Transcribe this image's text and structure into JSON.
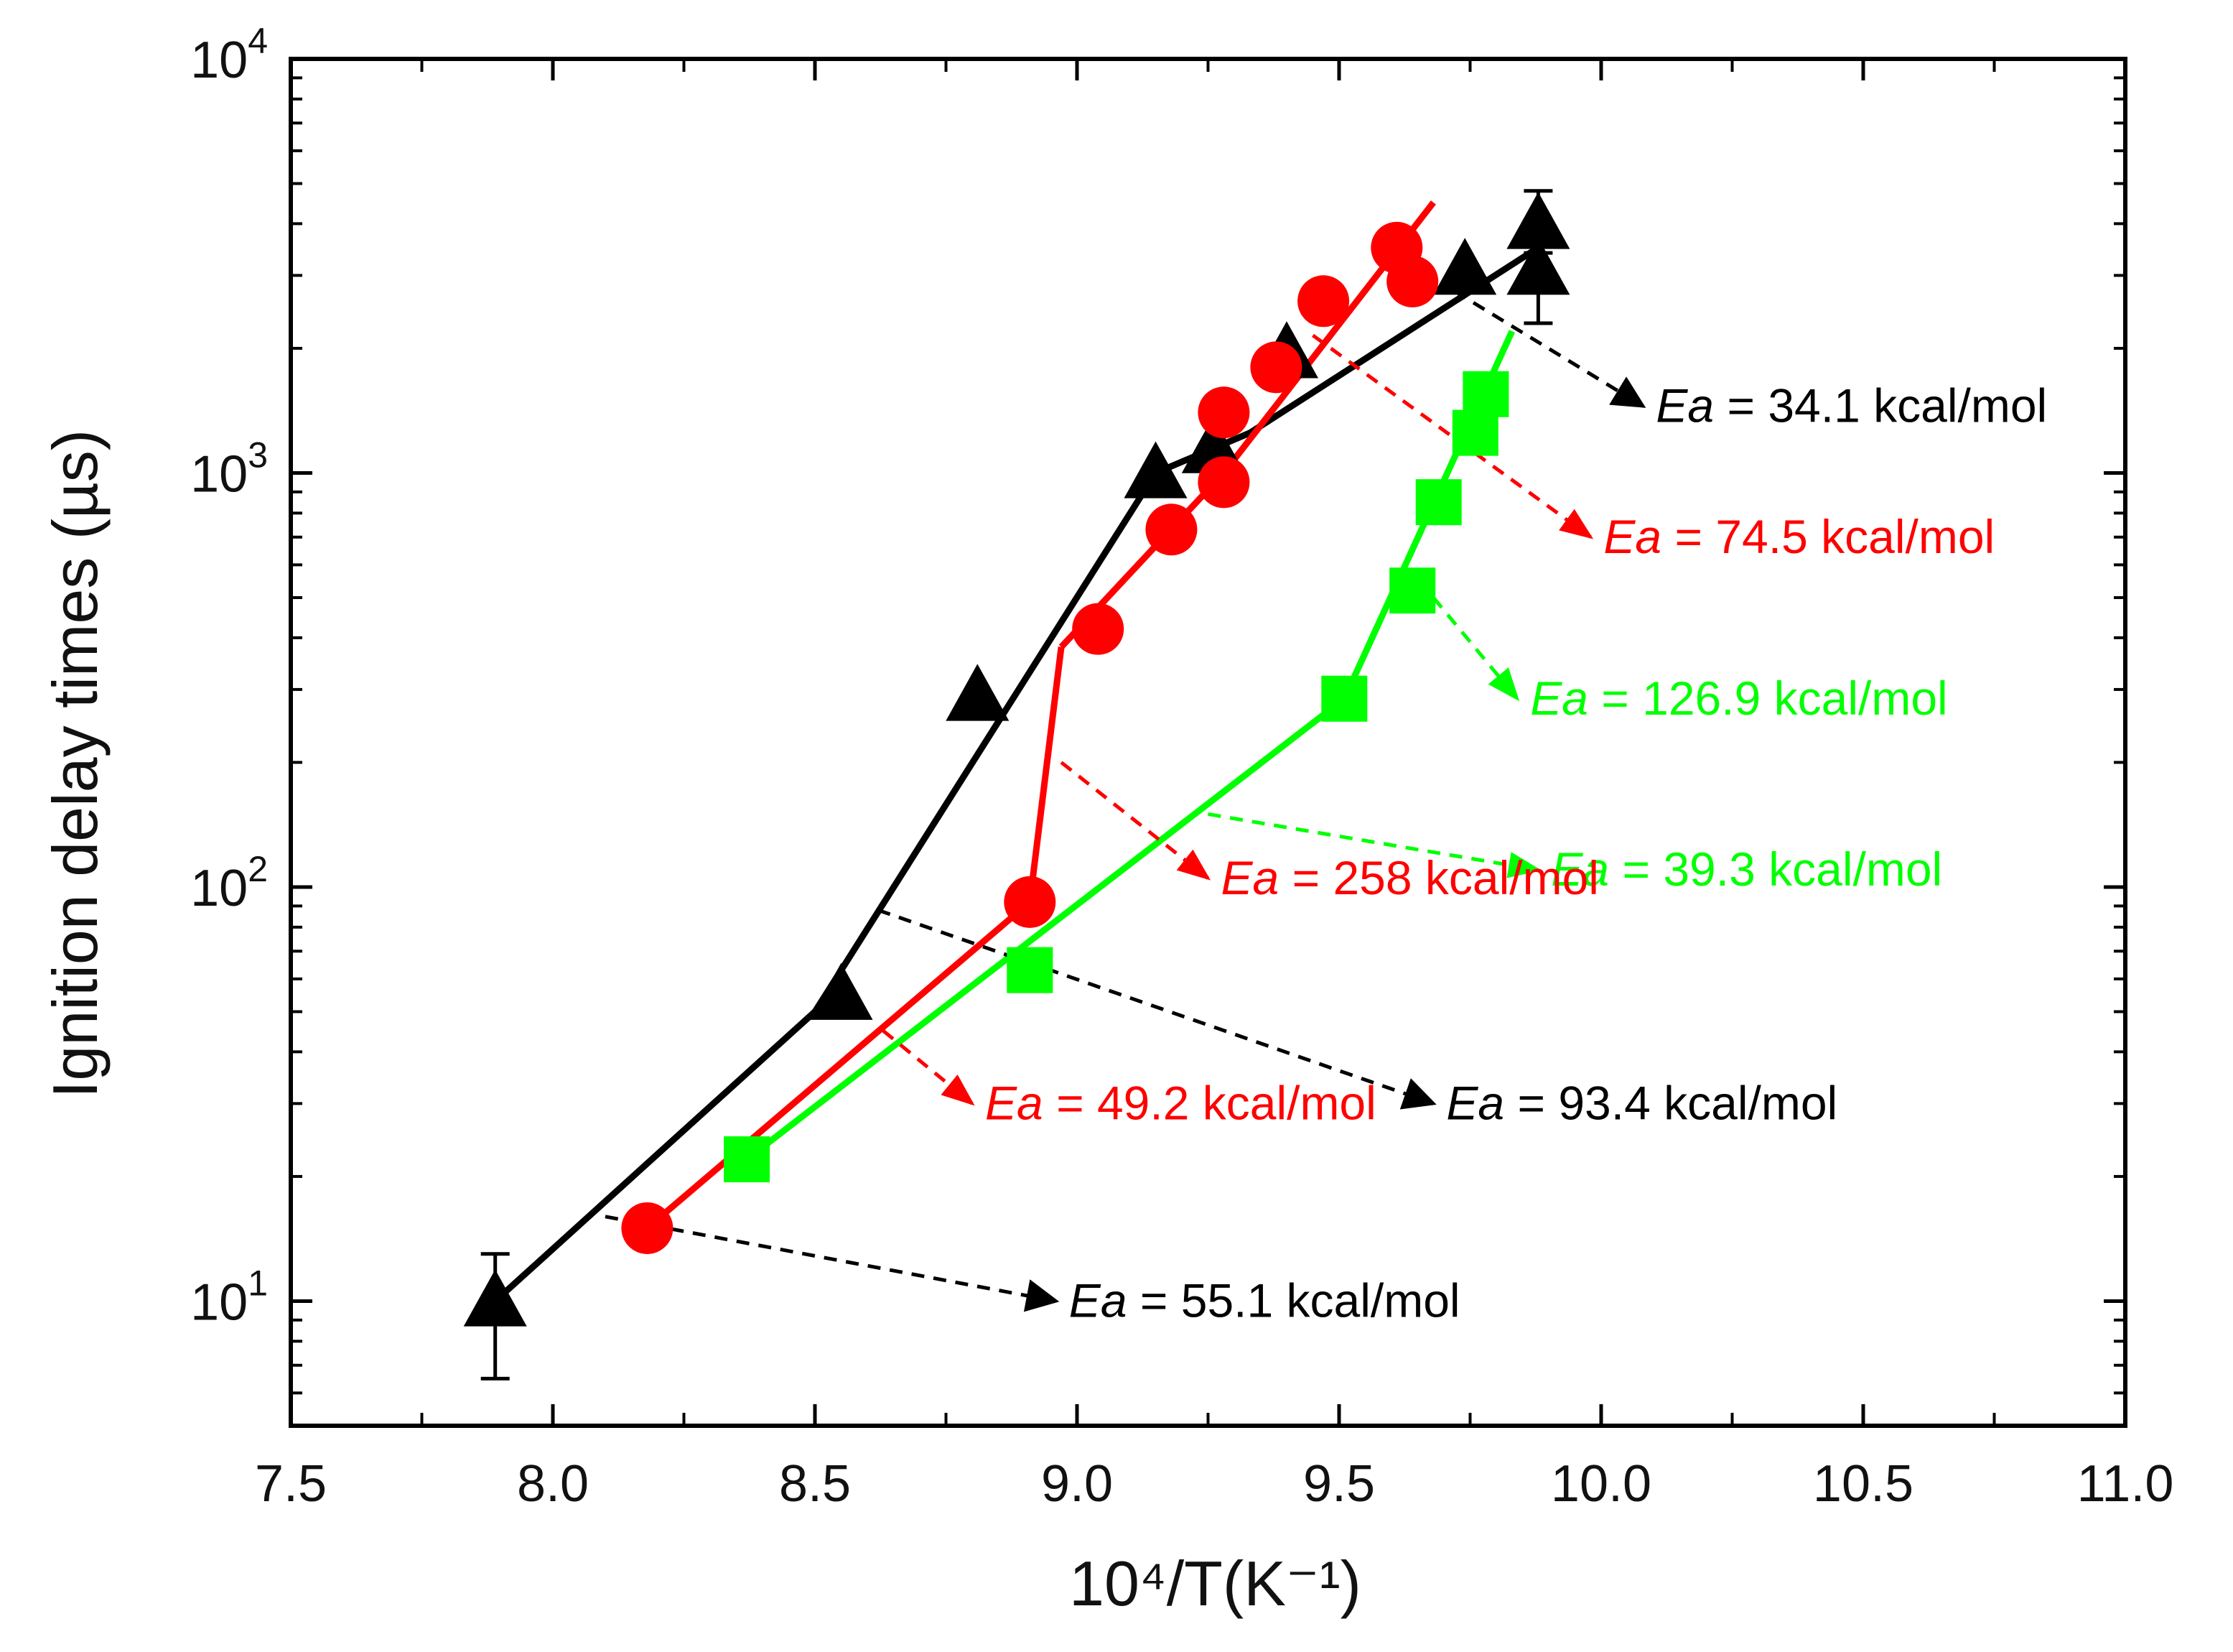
{
  "chart_data": {
    "type": "scatter",
    "title": "",
    "xlabel": "10⁴/T(K⁻¹)",
    "ylabel": "Ignition delay times (µs)",
    "xlim": [
      7.5,
      11.0
    ],
    "ylim": [
      5,
      10000
    ],
    "yscale": "log",
    "grid": false,
    "x_ticks": [
      7.5,
      8.0,
      8.5,
      9.0,
      9.5,
      10.0,
      10.5,
      11.0
    ],
    "x_tick_labels": [
      "7.5",
      "8.0",
      "8.5",
      "9.0",
      "9.5",
      "10.0",
      "10.5",
      "11.0"
    ],
    "y_ticks": [
      {
        "value": 10,
        "base": "10",
        "exp": "1"
      },
      {
        "value": 100,
        "base": "10",
        "exp": "2"
      },
      {
        "value": 1000,
        "base": "10",
        "exp": "3"
      },
      {
        "value": 10000,
        "base": "10",
        "exp": "4"
      }
    ],
    "series": [
      {
        "name": "black",
        "color": "#000000",
        "marker": "triangle",
        "points": [
          {
            "x": 7.89,
            "y": 10,
            "err": [
              6.5,
              13
            ]
          },
          {
            "x": 8.55,
            "y": 55
          },
          {
            "x": 8.81,
            "y": 290
          },
          {
            "x": 9.15,
            "y": 1000
          },
          {
            "x": 9.26,
            "y": 1150
          },
          {
            "x": 9.4,
            "y": 1950
          },
          {
            "x": 9.74,
            "y": 3100
          },
          {
            "x": 9.88,
            "y": 4000,
            "err": [
              3400,
              4800
            ]
          },
          {
            "x": 9.88,
            "y": 3100,
            "err": [
              2300,
              3100
            ]
          }
        ],
        "fits": [
          {
            "x": [
              7.89,
              8.5
            ],
            "y": [
              10,
              50
            ]
          },
          {
            "x": [
              8.5,
              9.15
            ],
            "y": [
              50,
              1000
            ]
          },
          {
            "x": [
              9.15,
              9.33
            ],
            "y": [
              1000,
              1250
            ]
          },
          {
            "x": [
              9.33,
              9.88
            ],
            "y": [
              1250,
              3500
            ]
          }
        ]
      },
      {
        "name": "red",
        "color": "#ff0000",
        "marker": "circle",
        "points": [
          {
            "x": 8.18,
            "y": 15
          },
          {
            "x": 8.91,
            "y": 92
          },
          {
            "x": 9.04,
            "y": 420
          },
          {
            "x": 9.18,
            "y": 730
          },
          {
            "x": 9.28,
            "y": 950
          },
          {
            "x": 9.28,
            "y": 1400
          },
          {
            "x": 9.38,
            "y": 1800
          },
          {
            "x": 9.47,
            "y": 2600
          },
          {
            "x": 9.61,
            "y": 3500
          },
          {
            "x": 9.64,
            "y": 2900
          }
        ],
        "fits": [
          {
            "x": [
              8.18,
              8.91
            ],
            "y": [
              15,
              92
            ]
          },
          {
            "x": [
              8.91,
              8.97
            ],
            "y": [
              92,
              380
            ]
          },
          {
            "x": [
              8.97,
              9.28
            ],
            "y": [
              380,
              1000
            ]
          },
          {
            "x": [
              9.28,
              9.68
            ],
            "y": [
              1000,
              4500
            ]
          }
        ]
      },
      {
        "name": "green",
        "color": "#00ff00",
        "marker": "square",
        "points": [
          {
            "x": 8.37,
            "y": 22
          },
          {
            "x": 8.91,
            "y": 63
          },
          {
            "x": 9.51,
            "y": 285
          },
          {
            "x": 9.64,
            "y": 520
          },
          {
            "x": 9.69,
            "y": 850
          },
          {
            "x": 9.76,
            "y": 1250
          },
          {
            "x": 9.78,
            "y": 1550
          }
        ],
        "fits": [
          {
            "x": [
              8.37,
              9.51
            ],
            "y": [
              22,
              285
            ]
          },
          {
            "x": [
              9.51,
              9.83
            ],
            "y": [
              285,
              2200
            ]
          }
        ]
      }
    ],
    "annotations": [
      {
        "symbol": "Ea",
        "text": " = 34.1 kcal/mol",
        "color": "#000000",
        "from": [
          9.72,
          2750
        ],
        "to": [
          10.08,
          1450
        ]
      },
      {
        "symbol": "Ea",
        "text": " = 74.5 kcal/mol",
        "color": "#ff0000",
        "from": [
          9.45,
          2150
        ],
        "to": [
          9.98,
          700
        ]
      },
      {
        "symbol": "Ea",
        "text": " = 126.9 kcal/mol",
        "color": "#00ff00",
        "from": [
          9.68,
          500
        ],
        "to": [
          9.84,
          285
        ]
      },
      {
        "symbol": "Ea",
        "text": " = 39.3 kcal/mol",
        "color": "#00ff00",
        "from": [
          9.25,
          150
        ],
        "to": [
          9.88,
          110
        ]
      },
      {
        "symbol": "Ea",
        "text": " = 258 kcal/mol",
        "color": "#ff0000",
        "from": [
          8.97,
          200
        ],
        "to": [
          9.25,
          105
        ]
      },
      {
        "symbol": "Ea",
        "text": " = 93.4 kcal/mol",
        "color": "#000000",
        "from": [
          8.62,
          88
        ],
        "to": [
          9.68,
          30
        ]
      },
      {
        "symbol": "Ea",
        "text": " = 49.2 kcal/mol",
        "color": "#ff0000",
        "from": [
          8.63,
          45
        ],
        "to": [
          8.8,
          30
        ]
      },
      {
        "symbol": "Ea",
        "text": " = 55.1 kcal/mol",
        "color": "#000000",
        "from": [
          8.1,
          16
        ],
        "to": [
          8.96,
          10
        ]
      }
    ]
  }
}
